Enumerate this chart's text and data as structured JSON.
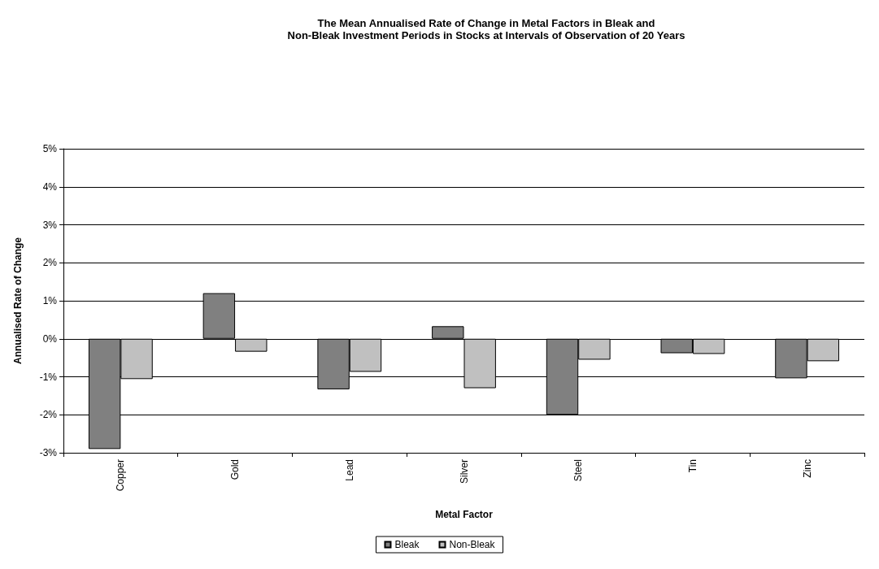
{
  "chart_data": {
    "type": "bar",
    "title": "The Mean Annualised Rate of Change in Metal Factors in Bleak and\nNon-Bleak Investment Periods in Stocks at Intervals of Observation of 20 Years",
    "xlabel": "Metal Factor",
    "ylabel": "Annualised Rate of Change",
    "categories": [
      "Copper",
      "Gold",
      "Lead",
      "Silver",
      "Steel",
      "Tin",
      "Zinc"
    ],
    "series": [
      {
        "name": "Bleak",
        "color": "#808080",
        "values": [
          -2.9,
          1.2,
          -1.33,
          0.33,
          -2.0,
          -0.38,
          -1.04
        ]
      },
      {
        "name": "Non-Bleak",
        "color": "#c0c0c0",
        "values": [
          -1.06,
          -0.34,
          -0.87,
          -1.3,
          -0.55,
          -0.4,
          -0.59
        ]
      }
    ],
    "ylim": [
      -3,
      5
    ],
    "yticks": [
      {
        "value": -3,
        "label": "-3%"
      },
      {
        "value": -2,
        "label": "-2%"
      },
      {
        "value": -1,
        "label": "-1%"
      },
      {
        "value": 0,
        "label": "0%"
      },
      {
        "value": 1,
        "label": "1%"
      },
      {
        "value": 2,
        "label": "2%"
      },
      {
        "value": 3,
        "label": "3%"
      },
      {
        "value": 4,
        "label": "4%"
      },
      {
        "value": 5,
        "label": "5%"
      }
    ],
    "grid": "y",
    "legend": "bottom"
  }
}
